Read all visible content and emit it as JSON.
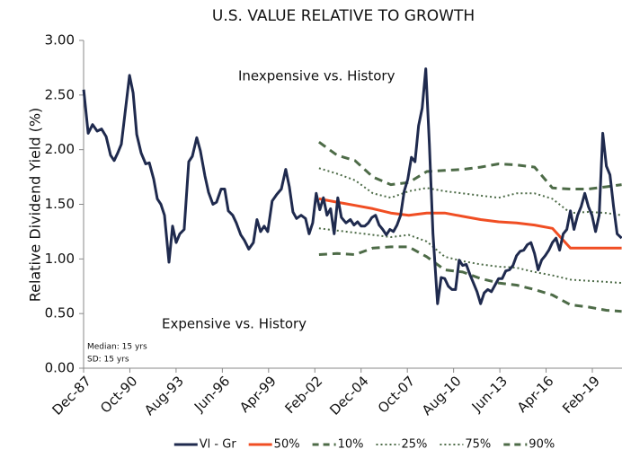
{
  "chart_data": {
    "type": "line",
    "title": "U.S. VALUE RELATIVE TO GROWTH",
    "y_label": "Relative Dividend Yield (%)",
    "annotations": [
      "Inexpensive vs. History",
      "Expensive vs. History",
      "Median: 15 yrs",
      "SD: 15 yrs"
    ],
    "xlim": [
      1987.917,
      2020.9
    ],
    "xticks": [
      {
        "value": 1987.917,
        "label": "Dec-87"
      },
      {
        "value": 1990.75,
        "label": "Oct-90"
      },
      {
        "value": 1993.583,
        "label": "Aug-93"
      },
      {
        "value": 1996.417,
        "label": "Jun-96"
      },
      {
        "value": 1999.25,
        "label": "Apr-99"
      },
      {
        "value": 2002.083,
        "label": "Feb-02"
      },
      {
        "value": 2004.917,
        "label": "Dec-04"
      },
      {
        "value": 2007.75,
        "label": "Oct-07"
      },
      {
        "value": 2010.583,
        "label": "Aug-10"
      },
      {
        "value": 2013.417,
        "label": "Jun-13"
      },
      {
        "value": 2016.25,
        "label": "Apr-16"
      },
      {
        "value": 2019.083,
        "label": "Feb-19"
      }
    ],
    "ylim": [
      0,
      3
    ],
    "yticks": [
      {
        "value": 0,
        "label": "0.00"
      },
      {
        "value": 0.5,
        "label": "0.50"
      },
      {
        "value": 1,
        "label": "1.00"
      },
      {
        "value": 1.5,
        "label": "1.50"
      },
      {
        "value": 2,
        "label": "2.00"
      },
      {
        "value": 2.5,
        "label": "2.50"
      },
      {
        "value": 3,
        "label": "3.00"
      }
    ],
    "grid": false,
    "legend": "bottom",
    "series": [
      {
        "name": "Vl - Gr",
        "color": "#1f2a4e",
        "style": "solid",
        "x": [
          1987.92,
          1988.2,
          1988.47,
          1988.75,
          1989.02,
          1989.3,
          1989.57,
          1989.79,
          1990.01,
          1990.23,
          1990.73,
          1990.95,
          1991.17,
          1991.44,
          1991.72,
          1991.94,
          1992.21,
          1992.43,
          1992.65,
          1992.87,
          1993.15,
          1993.37,
          1993.59,
          1993.81,
          1994.08,
          1994.36,
          1994.58,
          1994.85,
          1995.07,
          1995.35,
          1995.57,
          1995.84,
          1996.06,
          1996.34,
          1996.56,
          1996.78,
          1997.05,
          1997.27,
          1997.55,
          1997.77,
          1998.04,
          1998.32,
          1998.54,
          1998.76,
          1998.98,
          1999.2,
          1999.47,
          1999.75,
          2000.03,
          2000.3,
          2000.52,
          2000.74,
          2000.96,
          2001.24,
          2001.51,
          2001.73,
          2001.95,
          2002.17,
          2002.39,
          2002.61,
          2002.83,
          2003.05,
          2003.27,
          2003.49,
          2003.71,
          2003.99,
          2004.26,
          2004.48,
          2004.7,
          2004.92,
          2005.14,
          2005.36,
          2005.58,
          2005.8,
          2006.02,
          2006.24,
          2006.46,
          2006.68,
          2006.9,
          2007.12,
          2007.34,
          2007.56,
          2007.78,
          2008.0,
          2008.22,
          2008.44,
          2008.66,
          2008.88,
          2009.1,
          2009.32,
          2009.6,
          2009.82,
          2010.04,
          2010.26,
          2010.48,
          2010.7,
          2010.92,
          2011.14,
          2011.36,
          2011.58,
          2011.8,
          2012.02,
          2012.24,
          2012.46,
          2012.68,
          2012.9,
          2013.12,
          2013.34,
          2013.56,
          2013.78,
          2014.0,
          2014.22,
          2014.44,
          2014.66,
          2014.88,
          2015.1,
          2015.32,
          2015.54,
          2015.76,
          2015.98,
          2016.2,
          2016.42,
          2016.64,
          2016.86,
          2017.08,
          2017.3,
          2017.52,
          2017.74,
          2017.96,
          2018.18,
          2018.4,
          2018.62,
          2018.84,
          2019.06,
          2019.28,
          2019.5,
          2019.72,
          2019.94,
          2020.16,
          2020.38,
          2020.6,
          2020.88
        ],
        "values": [
          2.55,
          2.15,
          2.23,
          2.17,
          2.19,
          2.12,
          1.95,
          1.9,
          1.97,
          2.05,
          2.68,
          2.52,
          2.14,
          1.97,
          1.87,
          1.88,
          1.73,
          1.55,
          1.5,
          1.4,
          0.97,
          1.3,
          1.15,
          1.23,
          1.27,
          1.89,
          1.94,
          2.11,
          1.99,
          1.76,
          1.61,
          1.5,
          1.52,
          1.64,
          1.64,
          1.44,
          1.4,
          1.33,
          1.22,
          1.17,
          1.09,
          1.15,
          1.36,
          1.25,
          1.3,
          1.25,
          1.53,
          1.59,
          1.64,
          1.82,
          1.66,
          1.43,
          1.37,
          1.4,
          1.37,
          1.23,
          1.33,
          1.6,
          1.45,
          1.56,
          1.4,
          1.46,
          1.23,
          1.56,
          1.38,
          1.33,
          1.36,
          1.31,
          1.34,
          1.3,
          1.3,
          1.33,
          1.38,
          1.4,
          1.31,
          1.27,
          1.22,
          1.27,
          1.25,
          1.31,
          1.4,
          1.62,
          1.73,
          1.93,
          1.89,
          2.22,
          2.38,
          2.74,
          2.05,
          1.23,
          0.59,
          0.83,
          0.82,
          0.75,
          0.72,
          0.72,
          0.99,
          0.94,
          0.95,
          0.86,
          0.78,
          0.7,
          0.59,
          0.69,
          0.72,
          0.7,
          0.76,
          0.82,
          0.82,
          0.89,
          0.9,
          0.94,
          1.03,
          1.07,
          1.08,
          1.13,
          1.15,
          1.05,
          0.9,
          0.99,
          1.03,
          1.08,
          1.15,
          1.19,
          1.08,
          1.23,
          1.27,
          1.44,
          1.27,
          1.4,
          1.48,
          1.6,
          1.48,
          1.4,
          1.25,
          1.4,
          2.15,
          1.85,
          1.77,
          1.48,
          1.23,
          1.19
        ]
      },
      {
        "name": "50%",
        "color": "#f04e23",
        "style": "solid",
        "x": [
          2002.34,
          2003.44,
          2004.54,
          2005.64,
          2006.74,
          2007.84,
          2008.94,
          2010.04,
          2011.14,
          2012.24,
          2013.34,
          2014.44,
          2015.54,
          2016.64,
          2017.74,
          2018.84,
          2019.94,
          2020.88
        ],
        "values": [
          1.55,
          1.52,
          1.49,
          1.46,
          1.42,
          1.4,
          1.42,
          1.42,
          1.39,
          1.36,
          1.34,
          1.33,
          1.31,
          1.28,
          1.1,
          1.1,
          1.1,
          1.1
        ]
      },
      {
        "name": "10%",
        "color": "#4d6b47",
        "style": "dashed",
        "x": [
          2002.34,
          2003.44,
          2004.54,
          2005.64,
          2006.74,
          2007.84,
          2008.94,
          2010.04,
          2011.14,
          2012.24,
          2013.34,
          2014.44,
          2015.54,
          2016.64,
          2017.74,
          2018.84,
          2019.94,
          2020.88
        ],
        "values": [
          1.04,
          1.05,
          1.04,
          1.1,
          1.11,
          1.11,
          1.02,
          0.9,
          0.88,
          0.82,
          0.78,
          0.76,
          0.72,
          0.67,
          0.58,
          0.56,
          0.53,
          0.52
        ]
      },
      {
        "name": "25%",
        "color": "#4d6b47",
        "style": "dotted",
        "x": [
          2002.34,
          2003.44,
          2004.54,
          2005.64,
          2006.74,
          2007.84,
          2008.94,
          2010.04,
          2011.14,
          2012.24,
          2013.34,
          2014.44,
          2015.54,
          2016.64,
          2017.74,
          2018.84,
          2019.94,
          2020.88
        ],
        "values": [
          1.28,
          1.26,
          1.24,
          1.22,
          1.2,
          1.22,
          1.16,
          1.02,
          0.98,
          0.95,
          0.93,
          0.92,
          0.88,
          0.85,
          0.81,
          0.8,
          0.79,
          0.78
        ]
      },
      {
        "name": "75%",
        "color": "#4d6b47",
        "style": "dotted",
        "x": [
          2002.34,
          2003.44,
          2004.54,
          2005.64,
          2006.74,
          2007.84,
          2008.94,
          2010.04,
          2011.14,
          2012.24,
          2013.34,
          2014.44,
          2015.54,
          2016.64,
          2017.74,
          2018.84,
          2019.94,
          2020.88
        ],
        "values": [
          1.83,
          1.78,
          1.72,
          1.6,
          1.56,
          1.62,
          1.65,
          1.62,
          1.6,
          1.58,
          1.56,
          1.6,
          1.6,
          1.55,
          1.42,
          1.43,
          1.42,
          1.4
        ]
      },
      {
        "name": "90%",
        "color": "#4d6b47",
        "style": "dashed",
        "x": [
          2002.34,
          2003.44,
          2004.54,
          2005.64,
          2006.74,
          2007.84,
          2008.94,
          2010.04,
          2011.14,
          2012.24,
          2013.34,
          2014.44,
          2015.54,
          2016.64,
          2017.74,
          2018.84,
          2019.94,
          2020.88
        ],
        "values": [
          2.07,
          1.95,
          1.9,
          1.75,
          1.68,
          1.7,
          1.8,
          1.81,
          1.82,
          1.84,
          1.87,
          1.86,
          1.84,
          1.65,
          1.64,
          1.64,
          1.66,
          1.68
        ]
      }
    ]
  }
}
